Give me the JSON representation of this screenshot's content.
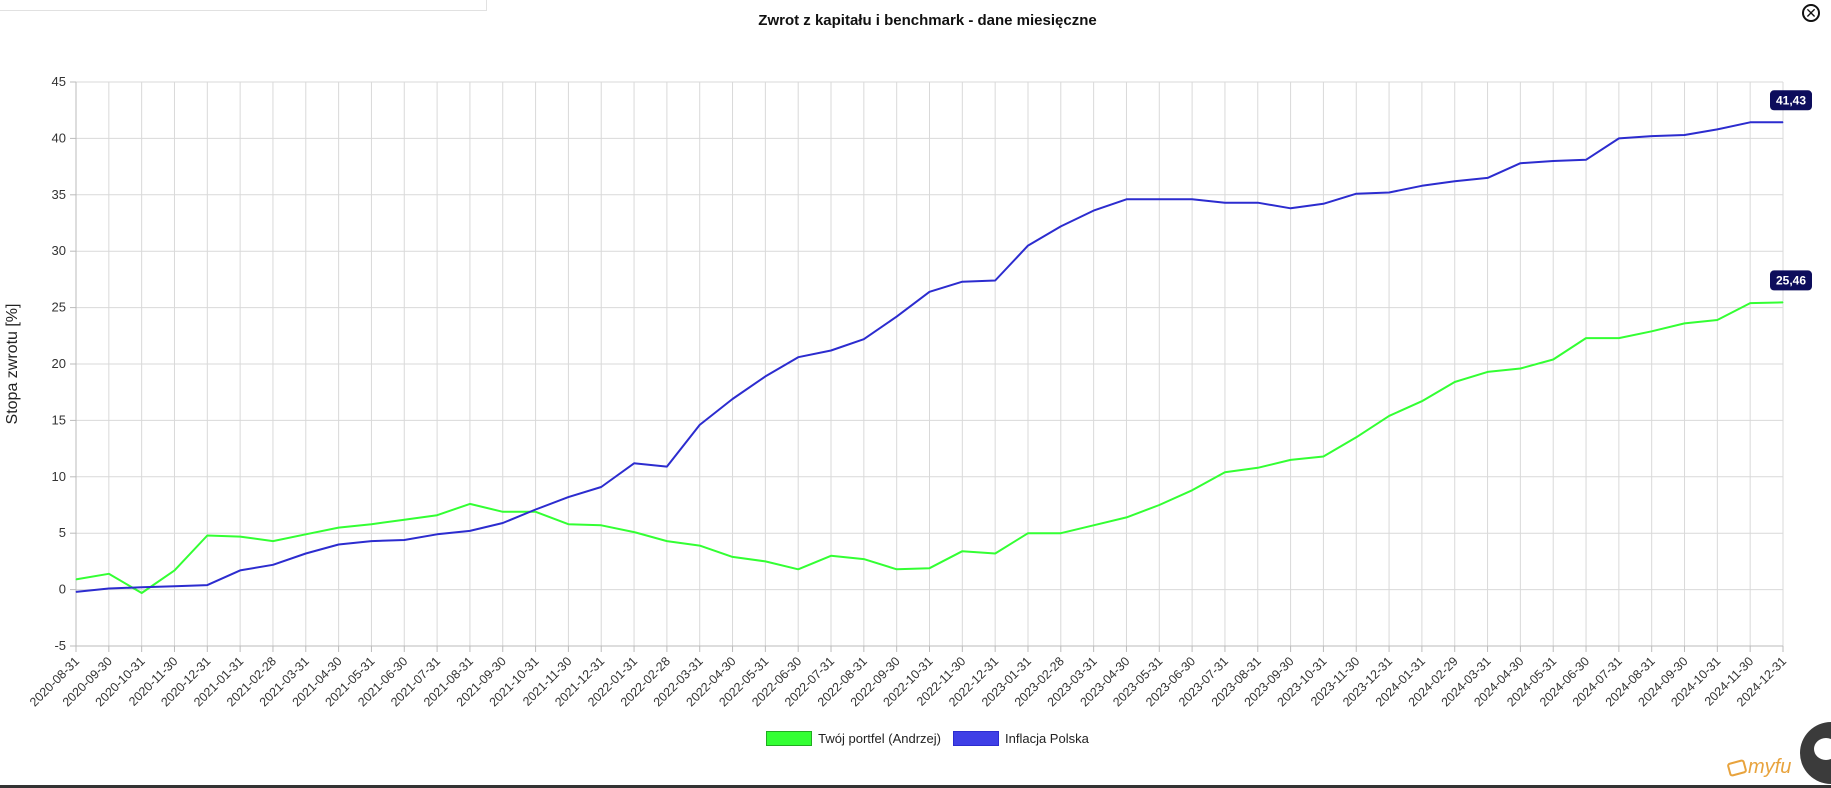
{
  "chart_title": "Zwrot z kapitału i benchmark - dane miesięczne",
  "close_glyph": "✕",
  "logo_text": "myfu",
  "chart_data": {
    "type": "line",
    "title": "Zwrot z kapitału i benchmark - dane miesięczne",
    "xlabel": "",
    "ylabel": "Stopa zwrotu [%]",
    "ylim": [
      -5,
      45
    ],
    "yticks": [
      -5,
      0,
      5,
      10,
      15,
      20,
      25,
      30,
      35,
      40,
      45
    ],
    "grid": true,
    "legend_position": "bottom",
    "x": [
      "2020-08-31",
      "2020-09-30",
      "2020-10-31",
      "2020-11-30",
      "2020-12-31",
      "2021-01-31",
      "2021-02-28",
      "2021-03-31",
      "2021-04-30",
      "2021-05-31",
      "2021-06-30",
      "2021-07-31",
      "2021-08-31",
      "2021-09-30",
      "2021-10-31",
      "2021-11-30",
      "2021-12-31",
      "2022-01-31",
      "2022-02-28",
      "2022-03-31",
      "2022-04-30",
      "2022-05-31",
      "2022-06-30",
      "2022-07-31",
      "2022-08-31",
      "2022-09-30",
      "2022-10-31",
      "2022-11-30",
      "2022-12-31",
      "2023-01-31",
      "2023-02-28",
      "2023-03-31",
      "2023-04-30",
      "2023-05-31",
      "2023-06-30",
      "2023-07-31",
      "2023-08-31",
      "2023-09-30",
      "2023-10-31",
      "2023-11-30",
      "2023-12-31",
      "2024-01-31",
      "2024-02-29",
      "2024-03-31",
      "2024-04-30",
      "2024-05-31",
      "2024-06-30",
      "2024-07-31",
      "2024-08-31",
      "2024-09-30",
      "2024-10-31",
      "2024-11-30",
      "2024-12-31"
    ],
    "series": [
      {
        "name": "Twój portfel (Andrzej)",
        "color": "#33ff33",
        "end_label": "25,46",
        "values": [
          0.9,
          1.4,
          -0.3,
          1.7,
          4.8,
          4.7,
          4.3,
          4.9,
          5.5,
          5.8,
          6.2,
          6.6,
          7.6,
          6.9,
          6.9,
          5.8,
          5.7,
          5.1,
          4.3,
          3.9,
          2.9,
          2.5,
          1.8,
          3.0,
          2.7,
          1.8,
          1.9,
          3.4,
          3.2,
          5.0,
          5.0,
          5.7,
          6.4,
          7.5,
          8.8,
          10.4,
          10.8,
          11.5,
          11.8,
          13.5,
          15.4,
          16.7,
          18.4,
          19.3,
          19.6,
          20.4,
          22.3,
          22.3,
          22.9,
          23.6,
          23.9,
          25.4,
          25.46
        ]
      },
      {
        "name": "Inflacja  Polska",
        "color": "#2c2ccf",
        "end_label": "41,43",
        "values": [
          -0.2,
          0.1,
          0.2,
          0.3,
          0.4,
          1.7,
          2.2,
          3.2,
          4.0,
          4.3,
          4.4,
          4.9,
          5.2,
          5.9,
          7.1,
          8.2,
          9.1,
          11.2,
          10.9,
          14.6,
          16.9,
          18.9,
          20.6,
          21.2,
          22.2,
          24.2,
          26.4,
          27.3,
          27.4,
          30.5,
          32.2,
          33.6,
          34.6,
          34.6,
          34.6,
          34.3,
          34.3,
          33.8,
          34.2,
          35.1,
          35.2,
          35.8,
          36.2,
          36.5,
          37.8,
          38.0,
          38.1,
          40.0,
          40.2,
          40.3,
          40.8,
          41.43,
          41.43
        ]
      }
    ]
  }
}
